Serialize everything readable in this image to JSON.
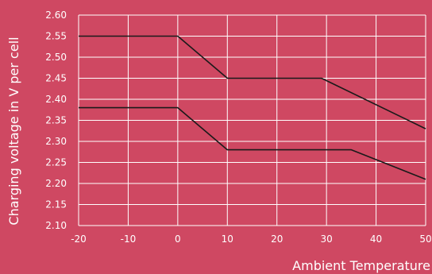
{
  "chart_data": {
    "type": "line",
    "xlabel": "Ambient Temperature",
    "ylabel": "Charging voltage in V per cell",
    "xlim": [
      -20,
      50
    ],
    "ylim": [
      2.1,
      2.6
    ],
    "x_ticks": [
      "-20",
      "-10",
      "0",
      "10",
      "20",
      "30",
      "40",
      "50"
    ],
    "y_ticks": [
      "2.60",
      "2.55",
      "2.50",
      "2.45",
      "2.40",
      "2.35",
      "2.30",
      "2.25",
      "2.20",
      "2.15",
      "2.10"
    ],
    "grid": true,
    "series": [
      {
        "x": [
          -20,
          0,
          10,
          29,
          50
        ],
        "values": [
          2.55,
          2.55,
          2.45,
          2.45,
          2.33
        ]
      },
      {
        "x": [
          -20,
          0,
          10,
          35,
          50
        ],
        "values": [
          2.38,
          2.38,
          2.28,
          2.28,
          2.21
        ]
      }
    ],
    "colors": {
      "background": "#cf4862",
      "grid": "#ffffff",
      "line": "#1a1a1a",
      "text": "#ffffff"
    }
  }
}
